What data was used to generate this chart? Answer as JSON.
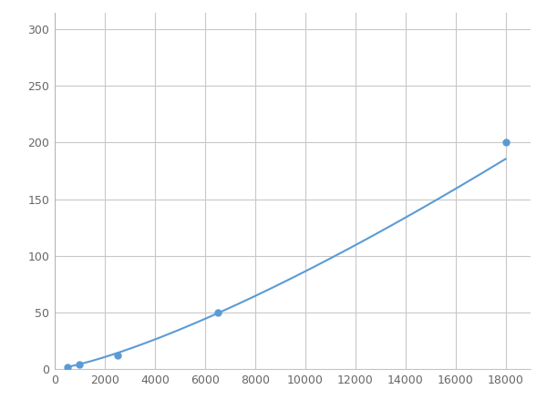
{
  "x_points": [
    500,
    1000,
    2500,
    6500,
    18000
  ],
  "y_points": [
    2,
    4,
    12,
    50,
    200
  ],
  "line_color": "#5b9bd5",
  "marker_color": "#5b9bd5",
  "marker_size": 5,
  "xlim": [
    0,
    19000
  ],
  "ylim": [
    0,
    315
  ],
  "xticks": [
    0,
    2000,
    4000,
    6000,
    8000,
    10000,
    12000,
    14000,
    16000,
    18000
  ],
  "yticks": [
    0,
    50,
    100,
    150,
    200,
    250,
    300
  ],
  "grid_color": "#c8c8c8",
  "background_color": "#ffffff",
  "linewidth": 1.5,
  "figsize": [
    6.0,
    4.5
  ],
  "dpi": 100
}
